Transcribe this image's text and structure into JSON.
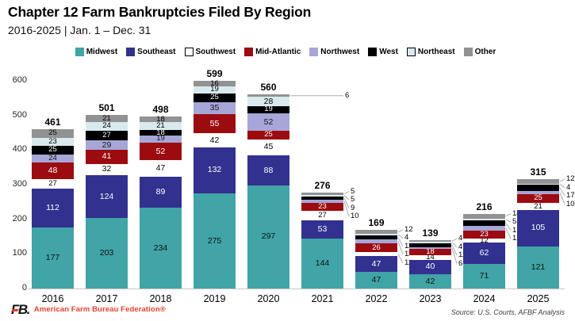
{
  "header": {
    "title": "Chapter 12 Farm Bankruptcies Filed By Region",
    "subtitle": "2016-2025 | Jan. 1 – Dec. 31"
  },
  "footer": {
    "brand_logo": "FB.",
    "brand_name": "American Farm Bureau Federation®",
    "source": "Source: U.S. Courts, AFBF Analysis"
  },
  "chart_data": {
    "type": "bar",
    "stacked": true,
    "title": "Chapter 12 Farm Bankruptcies Filed By Region",
    "subtitle": "2016-2025 | Jan. 1 – Dec. 31",
    "xlabel": "",
    "ylabel": "",
    "ylim": [
      0,
      600
    ],
    "yticks": [
      0,
      100,
      200,
      300,
      400,
      500,
      600
    ],
    "grid": false,
    "legend_position": "top",
    "categories": [
      "2016",
      "2017",
      "2018",
      "2019",
      "2020",
      "2021",
      "2022",
      "2023",
      "2024",
      "2025"
    ],
    "series": [
      {
        "name": "Midwest",
        "color": "#41a4a6",
        "label_color": "#101010",
        "values": [
          177,
          203,
          234,
          275,
          297,
          144,
          47,
          42,
          71,
          121
        ]
      },
      {
        "name": "Southeast",
        "color": "#32318f",
        "label_color": "#ffffff",
        "values": [
          112,
          124,
          89,
          132,
          88,
          53,
          47,
          40,
          62,
          105
        ]
      },
      {
        "name": "Southwest",
        "color": "#ffffff",
        "label_color": "#000000",
        "values": [
          27,
          32,
          47,
          42,
          45,
          27,
          11,
          14,
          12,
          21
        ]
      },
      {
        "name": "Mid-Atlantic",
        "color": "#9c0b10",
        "label_color": "#ffffff",
        "values": [
          48,
          41,
          52,
          55,
          25,
          23,
          26,
          18,
          23,
          25
        ]
      },
      {
        "name": "Northwest",
        "color": "#a6a6d8",
        "label_color": "#16161d",
        "values": [
          24,
          29,
          19,
          35,
          52,
          10,
          11,
          6,
          12,
          10
        ]
      },
      {
        "name": "West",
        "color": "#000000",
        "label_color": "#ffffff",
        "values": [
          25,
          27,
          18,
          25,
          19,
          9,
          11,
          11,
          17,
          17
        ]
      },
      {
        "name": "Northeast",
        "color": "#d9eaee",
        "label_color": "#000000",
        "values": [
          23,
          24,
          21,
          19,
          28,
          5,
          4,
          4,
          5,
          4
        ]
      },
      {
        "name": "Other",
        "color": "#929292",
        "label_color": "#000000",
        "values": [
          25,
          21,
          18,
          16,
          6,
          5,
          12,
          4,
          14,
          12
        ]
      }
    ],
    "totals": [
      461,
      501,
      498,
      599,
      560,
      276,
      169,
      139,
      216,
      315
    ],
    "callouts": {
      "2020": [
        "Other"
      ],
      "2021": [
        "Northwest",
        "West",
        "Northeast",
        "Other"
      ],
      "2022": [
        "Southwest",
        "Northwest",
        "West",
        "Northeast",
        "Other"
      ],
      "2023": [
        "Northwest",
        "West",
        "Northeast",
        "Other"
      ],
      "2024": [
        "Northwest",
        "West",
        "Northeast",
        "Other"
      ],
      "2025": [
        "Northwest",
        "West",
        "Northeast",
        "Other"
      ]
    }
  }
}
